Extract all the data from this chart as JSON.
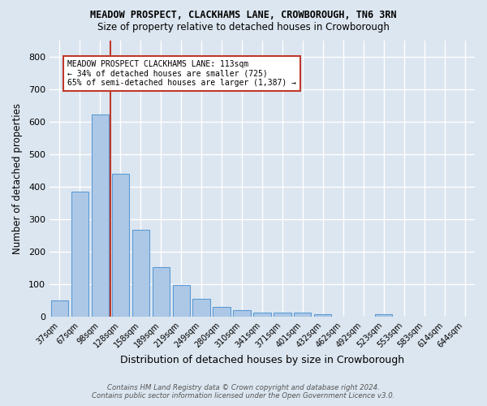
{
  "title": "MEADOW PROSPECT, CLACKHAMS LANE, CROWBOROUGH, TN6 3RN",
  "subtitle": "Size of property relative to detached houses in Crowborough",
  "xlabel": "Distribution of detached houses by size in Crowborough",
  "ylabel": "Number of detached properties",
  "footer_line1": "Contains HM Land Registry data © Crown copyright and database right 2024.",
  "footer_line2": "Contains public sector information licensed under the Open Government Licence v3.0.",
  "cat_labels": [
    "37sqm",
    "67sqm",
    "98sqm",
    "128sqm",
    "158sqm",
    "189sqm",
    "219sqm",
    "249sqm",
    "280sqm",
    "310sqm",
    "341sqm",
    "371sqm",
    "401sqm",
    "432sqm",
    "462sqm",
    "492sqm",
    "523sqm",
    "553sqm",
    "583sqm",
    "614sqm",
    "644sqm"
  ],
  "values": [
    50,
    385,
    622,
    440,
    268,
    153,
    98,
    55,
    30,
    20,
    12,
    13,
    13,
    8,
    0,
    0,
    8,
    0,
    0,
    0,
    0
  ],
  "bar_color": "#adc8e6",
  "bar_edge_color": "#5b9bd5",
  "bg_color": "#dce6f0",
  "grid_color": "#ffffff",
  "vline_x": 2.5,
  "vline_color": "#c0392b",
  "annotation_text": "MEADOW PROSPECT CLACKHAMS LANE: 113sqm\n← 34% of detached houses are smaller (725)\n65% of semi-detached houses are larger (1,387) →",
  "annotation_box_color": "#ffffff",
  "annotation_box_edge": "#c0392b",
  "ylim": [
    0,
    850
  ],
  "yticks": [
    0,
    100,
    200,
    300,
    400,
    500,
    600,
    700,
    800
  ]
}
